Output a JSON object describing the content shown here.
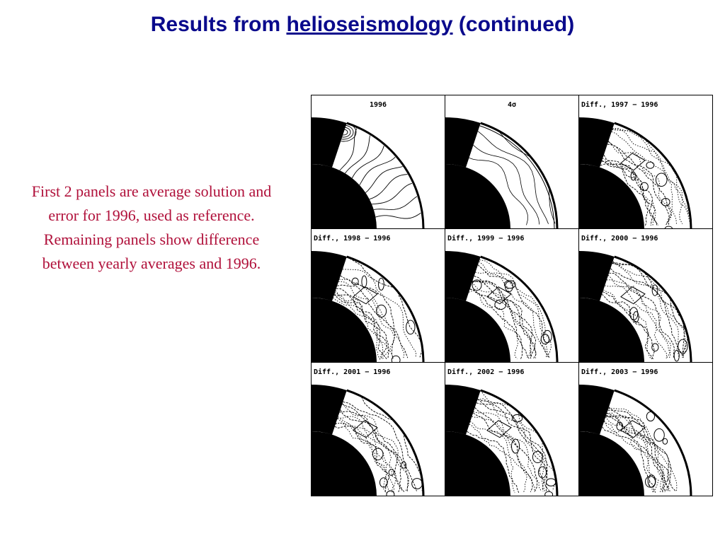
{
  "title": {
    "prefix": "Results from",
    "link": "helioseismology",
    "suffix": "(continued)",
    "color": "#0a0a8c"
  },
  "caption": {
    "text": "First 2 panels are average solution and error for 1996, used as reference. Remaining panels show difference between yearly averages and 1996.",
    "color": "#b0103a"
  },
  "figure": {
    "panels": [
      {
        "label": "1996",
        "kind": "mean"
      },
      {
        "label": "4σ",
        "kind": "error"
      },
      {
        "label": "Diff., 1997 − 1996",
        "kind": "diff"
      },
      {
        "label": "Diff., 1998 − 1996",
        "kind": "diff"
      },
      {
        "label": "Diff., 1999 − 1996",
        "kind": "diff"
      },
      {
        "label": "Diff., 2000 − 1996",
        "kind": "diff"
      },
      {
        "label": "Diff., 2001 − 1996",
        "kind": "diff"
      },
      {
        "label": "Diff., 2002 − 1996",
        "kind": "diff"
      },
      {
        "label": "Diff., 2003 − 1996",
        "kind": "diff"
      }
    ]
  }
}
